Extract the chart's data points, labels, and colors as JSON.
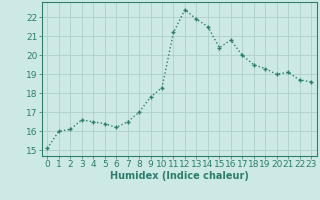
{
  "x": [
    0,
    1,
    2,
    3,
    4,
    5,
    6,
    7,
    8,
    9,
    10,
    11,
    12,
    13,
    14,
    15,
    16,
    17,
    18,
    19,
    20,
    21,
    22,
    23
  ],
  "y": [
    15.1,
    16.0,
    16.1,
    16.6,
    16.5,
    16.4,
    16.2,
    16.5,
    17.0,
    17.8,
    18.3,
    21.2,
    22.4,
    21.9,
    21.5,
    20.4,
    20.8,
    20.0,
    19.5,
    19.3,
    19.0,
    19.1,
    18.7,
    18.6
  ],
  "xlabel": "Humidex (Indice chaleur)",
  "xlim": [
    -0.5,
    23.5
  ],
  "ylim": [
    14.7,
    22.8
  ],
  "yticks": [
    15,
    16,
    17,
    18,
    19,
    20,
    21,
    22
  ],
  "xticks": [
    0,
    1,
    2,
    3,
    4,
    5,
    6,
    7,
    8,
    9,
    10,
    11,
    12,
    13,
    14,
    15,
    16,
    17,
    18,
    19,
    20,
    21,
    22,
    23
  ],
  "line_color": "#2e7d6d",
  "marker_color": "#2e7d6d",
  "bg_color": "#cce9e6",
  "grid_color": "#b0ceca",
  "axis_color": "#2e7d6d",
  "tick_color": "#2e7d6d",
  "label_color": "#2e7d6d",
  "xlabel_fontsize": 7,
  "tick_fontsize": 6.5,
  "marker": "P",
  "marker_size": 2.5,
  "line_width": 1.0
}
